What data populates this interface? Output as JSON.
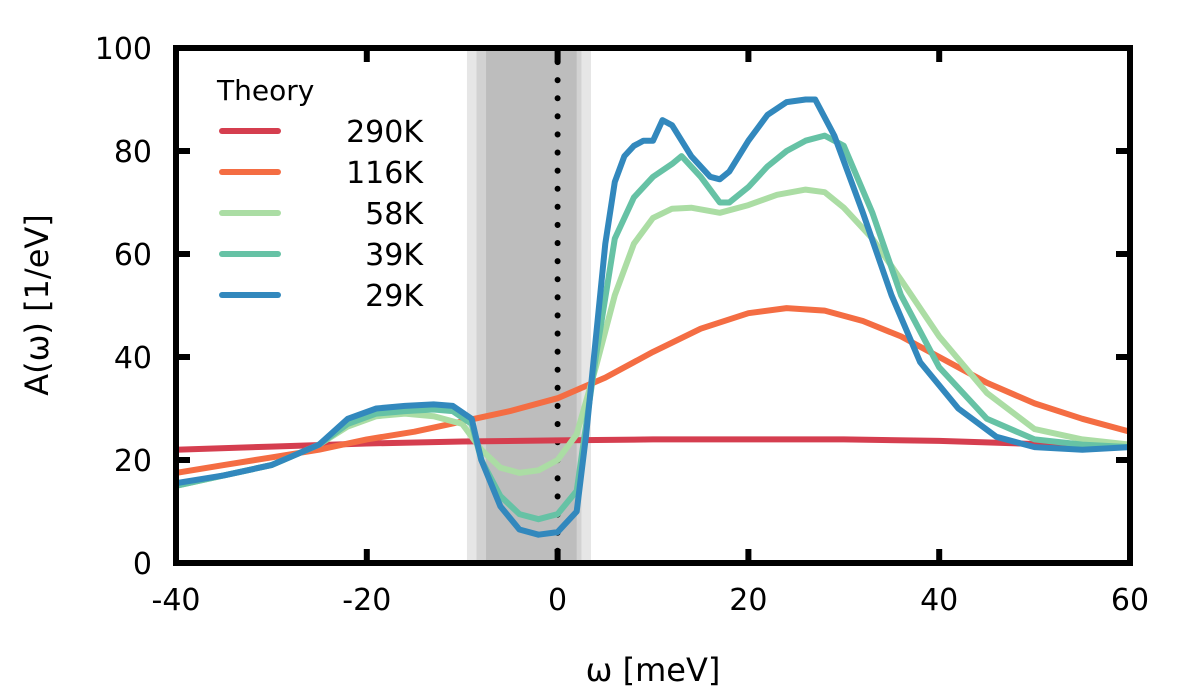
{
  "chart_data": {
    "type": "line",
    "title": "",
    "xlabel": "ω [meV]",
    "ylabel": "A(ω) [1/eV]",
    "xlim": [
      -40,
      60
    ],
    "ylim": [
      0,
      100
    ],
    "xticks": [
      -40,
      -20,
      0,
      20,
      40,
      60
    ],
    "yticks": [
      0,
      20,
      40,
      60,
      80,
      100
    ],
    "grid": false,
    "legend": {
      "title": "Theory",
      "position": "top-left"
    },
    "reference_line": {
      "x": 0,
      "style": "dotted"
    },
    "shaded_band": {
      "x_range": [
        -9.5,
        3.5
      ],
      "inner_range": [
        -7.5,
        2
      ],
      "color": "#bdbdbd"
    },
    "series": [
      {
        "name": "290K",
        "color": "#d53e4f",
        "x": [
          -40,
          -30,
          -20,
          -10,
          0,
          10,
          20,
          30,
          40,
          50,
          60
        ],
        "y": [
          22.0,
          22.6,
          23.2,
          23.6,
          23.8,
          24.0,
          24.0,
          24.0,
          23.7,
          23.1,
          22.5
        ]
      },
      {
        "name": "116K",
        "color": "#f46d43",
        "x": [
          -40,
          -35,
          -30,
          -25,
          -20,
          -15,
          -10,
          -5,
          0,
          5,
          10,
          15,
          20,
          24,
          28,
          32,
          36,
          40,
          45,
          50,
          55,
          60
        ],
        "y": [
          17.5,
          19.0,
          20.5,
          22.0,
          24.0,
          25.5,
          27.5,
          29.5,
          32.0,
          36.0,
          41.0,
          45.5,
          48.5,
          49.5,
          49.0,
          47.0,
          44.0,
          40.0,
          35.0,
          31.0,
          28.0,
          25.5
        ]
      },
      {
        "name": "58K",
        "color": "#abdda4",
        "x": [
          -40,
          -35,
          -30,
          -25,
          -22,
          -19,
          -16,
          -13,
          -10,
          -8,
          -6,
          -4,
          -2,
          0,
          2,
          4,
          6,
          8,
          10,
          12,
          14,
          17,
          20,
          23,
          26,
          28,
          30,
          33,
          36,
          40,
          45,
          50,
          55,
          60
        ],
        "y": [
          15.0,
          17.0,
          19.0,
          23.0,
          26.5,
          28.5,
          29.0,
          28.5,
          27.0,
          22.0,
          18.5,
          17.5,
          18.0,
          20.0,
          25.0,
          38.0,
          52.0,
          62.0,
          67.0,
          68.8,
          69.0,
          68.0,
          69.5,
          71.5,
          72.5,
          72.0,
          69.0,
          63.0,
          55.0,
          44.0,
          33.0,
          26.0,
          24.0,
          23.0
        ]
      },
      {
        "name": "39K",
        "color": "#66c2a5",
        "x": [
          -40,
          -35,
          -30,
          -25,
          -22,
          -19,
          -16,
          -13,
          -11,
          -9,
          -8,
          -6,
          -4,
          -2,
          0,
          2,
          4,
          6,
          8,
          10,
          12,
          13,
          15,
          17,
          18,
          20,
          22,
          24,
          26,
          28,
          30,
          33,
          36,
          40,
          45,
          50,
          55,
          60
        ],
        "y": [
          15.0,
          17.0,
          19.0,
          23.0,
          27.0,
          29.0,
          29.5,
          29.8,
          29.5,
          27.0,
          20.0,
          13.0,
          9.5,
          8.5,
          9.5,
          14.0,
          40.0,
          63.0,
          71.0,
          75.0,
          77.5,
          79.0,
          75.0,
          70.0,
          70.0,
          73.0,
          77.0,
          80.0,
          82.0,
          83.0,
          81.0,
          68.0,
          52.0,
          38.0,
          28.0,
          24.0,
          23.0,
          22.5
        ]
      },
      {
        "name": "29K",
        "color": "#3288bd",
        "x": [
          -40,
          -35,
          -30,
          -25,
          -22,
          -19,
          -16,
          -13,
          -11,
          -9,
          -8,
          -6,
          -4,
          -2,
          0,
          2,
          3,
          5,
          6,
          7,
          8,
          9,
          10,
          11,
          12,
          14,
          16,
          17,
          18,
          20,
          22,
          24,
          26,
          27,
          29,
          32,
          35,
          38,
          42,
          46,
          50,
          55,
          60
        ],
        "y": [
          15.5,
          17.0,
          19.0,
          23.0,
          28.0,
          30.0,
          30.5,
          30.8,
          30.5,
          28.0,
          20.0,
          11.0,
          6.5,
          5.5,
          6.0,
          10.0,
          25.0,
          62.0,
          74.0,
          79.0,
          81.0,
          82.0,
          82.0,
          86.0,
          85.0,
          79.0,
          75.0,
          74.5,
          76.0,
          82.0,
          87.0,
          89.5,
          90.0,
          90.0,
          83.0,
          68.0,
          52.0,
          39.0,
          30.0,
          24.5,
          22.5,
          22.0,
          22.5
        ]
      }
    ]
  }
}
